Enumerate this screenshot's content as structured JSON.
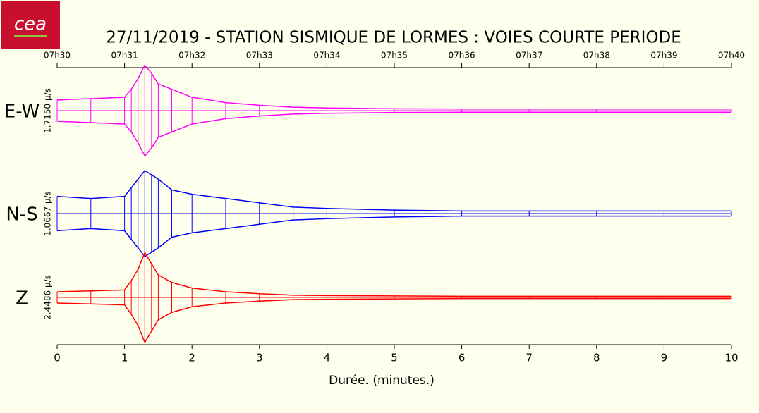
{
  "logo": "cea",
  "chart_data": {
    "type": "seismogram",
    "title": "27/11/2019  -  STATION SISMIQUE DE LORMES : VOIES COURTE PERIODE",
    "xlabel": "Durée.  (minutes.)",
    "xlim": [
      0,
      10
    ],
    "xticks": [
      0,
      1,
      2,
      3,
      4,
      5,
      6,
      7,
      8,
      9,
      10
    ],
    "x2ticks": [
      {
        "value": 0,
        "label": "07h30"
      },
      {
        "value": 1,
        "label": "07h31"
      },
      {
        "value": 2,
        "label": "07h32"
      },
      {
        "value": 3,
        "label": "07h33"
      },
      {
        "value": 4,
        "label": "07h34"
      },
      {
        "value": 5,
        "label": "07h35"
      },
      {
        "value": 6,
        "label": "07h36"
      },
      {
        "value": 7,
        "label": "07h37"
      },
      {
        "value": 8,
        "label": "07h38"
      },
      {
        "value": 9,
        "label": "07h39"
      },
      {
        "value": 10,
        "label": "07h40"
      }
    ],
    "x": [
      0,
      0.5,
      1,
      1.1,
      1.2,
      1.3,
      1.4,
      1.5,
      1.7,
      2,
      2.5,
      3,
      3.5,
      4,
      5,
      6,
      7,
      8,
      9,
      10
    ],
    "series": [
      {
        "name": "E-W",
        "scale": 1.715,
        "scale_label": "1.7150 µ/s",
        "color": "#ff00ff",
        "values": [
          0.4,
          0.45,
          0.5,
          0.8,
          1.2,
          1.7,
          1.4,
          1.0,
          0.8,
          0.5,
          0.3,
          0.2,
          0.13,
          0.1,
          0.07,
          0.06,
          0.06,
          0.06,
          0.06,
          0.06
        ]
      },
      {
        "name": "N-S",
        "scale": 1.0667,
        "scale_label": "1.0667 µ/s",
        "color": "#0000ff",
        "values": [
          0.4,
          0.35,
          0.4,
          0.6,
          0.8,
          1.0,
          0.9,
          0.8,
          0.55,
          0.45,
          0.35,
          0.25,
          0.15,
          0.12,
          0.08,
          0.06,
          0.06,
          0.06,
          0.06,
          0.06
        ]
      },
      {
        "name": "Z",
        "scale": 2.4486,
        "scale_label": "2.4486 µ/s",
        "color": "#ff0000",
        "values": [
          0.3,
          0.35,
          0.4,
          0.9,
          1.5,
          2.4,
          1.8,
          1.2,
          0.8,
          0.5,
          0.3,
          0.2,
          0.12,
          0.1,
          0.08,
          0.06,
          0.06,
          0.06,
          0.06,
          0.06
        ]
      }
    ]
  }
}
